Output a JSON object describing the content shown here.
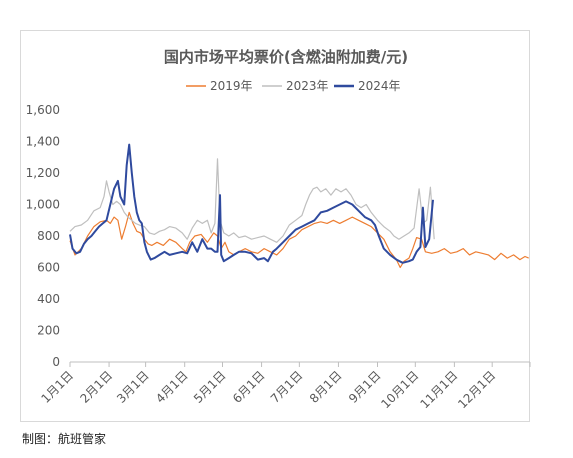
{
  "source_note": "制图：航班管家",
  "chart_data": {
    "type": "line",
    "title": "国内市场平均票价(含燃油附加费/元)",
    "xlabel": "",
    "ylabel": "",
    "ylim": [
      0,
      1600
    ],
    "yticks": [
      "0",
      "200",
      "400",
      "600",
      "800",
      "1,000",
      "1,200",
      "1,400",
      "1,600"
    ],
    "xticks": [
      "1月1日",
      "2月1日",
      "3月1日",
      "4月1日",
      "5月1日",
      "6月1日",
      "7月1日",
      "8月1日",
      "9月1日",
      "10月1日",
      "11月1日",
      "12月1日"
    ],
    "grid": false,
    "legend_position": "top-center",
    "series": [
      {
        "name": "2019年",
        "color": "#ED7D31",
        "points": [
          [
            1,
            770
          ],
          [
            5,
            680
          ],
          [
            10,
            720
          ],
          [
            15,
            800
          ],
          [
            20,
            860
          ],
          [
            25,
            890
          ],
          [
            30,
            900
          ],
          [
            33,
            880
          ],
          [
            36,
            920
          ],
          [
            39,
            900
          ],
          [
            42,
            780
          ],
          [
            45,
            860
          ],
          [
            48,
            950
          ],
          [
            51,
            880
          ],
          [
            54,
            830
          ],
          [
            57,
            820
          ],
          [
            60,
            780
          ],
          [
            63,
            750
          ],
          [
            66,
            740
          ],
          [
            70,
            760
          ],
          [
            75,
            740
          ],
          [
            80,
            780
          ],
          [
            85,
            760
          ],
          [
            90,
            720
          ],
          [
            93,
            700
          ],
          [
            96,
            760
          ],
          [
            100,
            800
          ],
          [
            105,
            810
          ],
          [
            110,
            760
          ],
          [
            115,
            820
          ],
          [
            118,
            800
          ],
          [
            121,
            720
          ],
          [
            124,
            760
          ],
          [
            127,
            700
          ],
          [
            131,
            680
          ],
          [
            135,
            700
          ],
          [
            140,
            720
          ],
          [
            145,
            700
          ],
          [
            150,
            690
          ],
          [
            155,
            720
          ],
          [
            160,
            700
          ],
          [
            165,
            680
          ],
          [
            170,
            720
          ],
          [
            175,
            780
          ],
          [
            180,
            800
          ],
          [
            185,
            840
          ],
          [
            190,
            860
          ],
          [
            195,
            880
          ],
          [
            200,
            890
          ],
          [
            205,
            880
          ],
          [
            210,
            900
          ],
          [
            215,
            880
          ],
          [
            220,
            900
          ],
          [
            225,
            920
          ],
          [
            230,
            900
          ],
          [
            235,
            880
          ],
          [
            240,
            860
          ],
          [
            245,
            820
          ],
          [
            250,
            780
          ],
          [
            255,
            700
          ],
          [
            260,
            650
          ],
          [
            263,
            600
          ],
          [
            266,
            640
          ],
          [
            270,
            660
          ],
          [
            273,
            720
          ],
          [
            276,
            790
          ],
          [
            280,
            780
          ],
          [
            283,
            700
          ],
          [
            288,
            690
          ],
          [
            293,
            700
          ],
          [
            298,
            720
          ],
          [
            303,
            690
          ],
          [
            308,
            700
          ],
          [
            313,
            720
          ],
          [
            318,
            680
          ],
          [
            323,
            700
          ],
          [
            328,
            690
          ],
          [
            333,
            680
          ],
          [
            338,
            650
          ],
          [
            343,
            690
          ],
          [
            348,
            660
          ],
          [
            353,
            680
          ],
          [
            358,
            650
          ],
          [
            362,
            670
          ],
          [
            365,
            660
          ]
        ]
      },
      {
        "name": "2023年",
        "color": "#BFBFBF",
        "points": [
          [
            1,
            830
          ],
          [
            5,
            860
          ],
          [
            10,
            870
          ],
          [
            15,
            900
          ],
          [
            20,
            960
          ],
          [
            25,
            980
          ],
          [
            28,
            1050
          ],
          [
            30,
            1150
          ],
          [
            32,
            1080
          ],
          [
            35,
            1000
          ],
          [
            38,
            1020
          ],
          [
            41,
            1000
          ],
          [
            44,
            950
          ],
          [
            47,
            920
          ],
          [
            50,
            900
          ],
          [
            53,
            880
          ],
          [
            56,
            870
          ],
          [
            60,
            860
          ],
          [
            64,
            820
          ],
          [
            68,
            810
          ],
          [
            72,
            830
          ],
          [
            76,
            840
          ],
          [
            80,
            860
          ],
          [
            85,
            850
          ],
          [
            90,
            820
          ],
          [
            94,
            780
          ],
          [
            98,
            850
          ],
          [
            102,
            900
          ],
          [
            106,
            880
          ],
          [
            110,
            900
          ],
          [
            113,
            820
          ],
          [
            116,
            880
          ],
          [
            118,
            1290
          ],
          [
            120,
            900
          ],
          [
            123,
            820
          ],
          [
            127,
            800
          ],
          [
            131,
            820
          ],
          [
            135,
            790
          ],
          [
            140,
            800
          ],
          [
            145,
            780
          ],
          [
            150,
            790
          ],
          [
            155,
            800
          ],
          [
            160,
            780
          ],
          [
            165,
            760
          ],
          [
            170,
            800
          ],
          [
            175,
            870
          ],
          [
            180,
            900
          ],
          [
            185,
            930
          ],
          [
            188,
            1000
          ],
          [
            191,
            1060
          ],
          [
            194,
            1100
          ],
          [
            197,
            1110
          ],
          [
            200,
            1080
          ],
          [
            204,
            1100
          ],
          [
            208,
            1060
          ],
          [
            212,
            1100
          ],
          [
            216,
            1080
          ],
          [
            220,
            1100
          ],
          [
            224,
            1060
          ],
          [
            228,
            1000
          ],
          [
            232,
            980
          ],
          [
            236,
            1000
          ],
          [
            240,
            950
          ],
          [
            245,
            900
          ],
          [
            250,
            860
          ],
          [
            255,
            830
          ],
          [
            258,
            800
          ],
          [
            262,
            780
          ],
          [
            266,
            800
          ],
          [
            270,
            820
          ],
          [
            274,
            850
          ],
          [
            278,
            1100
          ],
          [
            281,
            880
          ],
          [
            284,
            900
          ],
          [
            287,
            1110
          ],
          [
            290,
            780
          ]
        ]
      },
      {
        "name": "2024年",
        "color": "#2F4A9E",
        "points": [
          [
            1,
            810
          ],
          [
            3,
            720
          ],
          [
            6,
            690
          ],
          [
            9,
            700
          ],
          [
            12,
            750
          ],
          [
            15,
            780
          ],
          [
            18,
            800
          ],
          [
            21,
            830
          ],
          [
            24,
            860
          ],
          [
            27,
            880
          ],
          [
            30,
            900
          ],
          [
            33,
            1000
          ],
          [
            36,
            1100
          ],
          [
            39,
            1150
          ],
          [
            41,
            1050
          ],
          [
            44,
            1000
          ],
          [
            46,
            1250
          ],
          [
            48,
            1380
          ],
          [
            50,
            1200
          ],
          [
            52,
            1050
          ],
          [
            54,
            950
          ],
          [
            56,
            900
          ],
          [
            58,
            880
          ],
          [
            60,
            760
          ],
          [
            62,
            700
          ],
          [
            65,
            650
          ],
          [
            68,
            660
          ],
          [
            72,
            680
          ],
          [
            76,
            700
          ],
          [
            80,
            680
          ],
          [
            85,
            690
          ],
          [
            90,
            700
          ],
          [
            94,
            690
          ],
          [
            98,
            760
          ],
          [
            102,
            700
          ],
          [
            106,
            780
          ],
          [
            110,
            720
          ],
          [
            113,
            720
          ],
          [
            116,
            700
          ],
          [
            118,
            700
          ],
          [
            120,
            1060
          ],
          [
            121,
            680
          ],
          [
            123,
            640
          ],
          [
            127,
            660
          ],
          [
            131,
            680
          ],
          [
            135,
            700
          ],
          [
            140,
            700
          ],
          [
            145,
            690
          ],
          [
            150,
            650
          ],
          [
            155,
            660
          ],
          [
            158,
            640
          ],
          [
            162,
            700
          ],
          [
            165,
            720
          ],
          [
            170,
            760
          ],
          [
            175,
            800
          ],
          [
            180,
            840
          ],
          [
            185,
            860
          ],
          [
            190,
            880
          ],
          [
            195,
            900
          ],
          [
            200,
            950
          ],
          [
            205,
            960
          ],
          [
            210,
            980
          ],
          [
            215,
            1000
          ],
          [
            220,
            1020
          ],
          [
            225,
            1000
          ],
          [
            230,
            960
          ],
          [
            235,
            920
          ],
          [
            240,
            900
          ],
          [
            243,
            870
          ],
          [
            246,
            800
          ],
          [
            250,
            720
          ],
          [
            255,
            680
          ],
          [
            260,
            650
          ],
          [
            265,
            630
          ],
          [
            270,
            640
          ],
          [
            273,
            650
          ],
          [
            276,
            700
          ],
          [
            279,
            730
          ],
          [
            281,
            980
          ],
          [
            283,
            730
          ],
          [
            286,
            780
          ],
          [
            289,
            1030
          ]
        ]
      }
    ]
  }
}
